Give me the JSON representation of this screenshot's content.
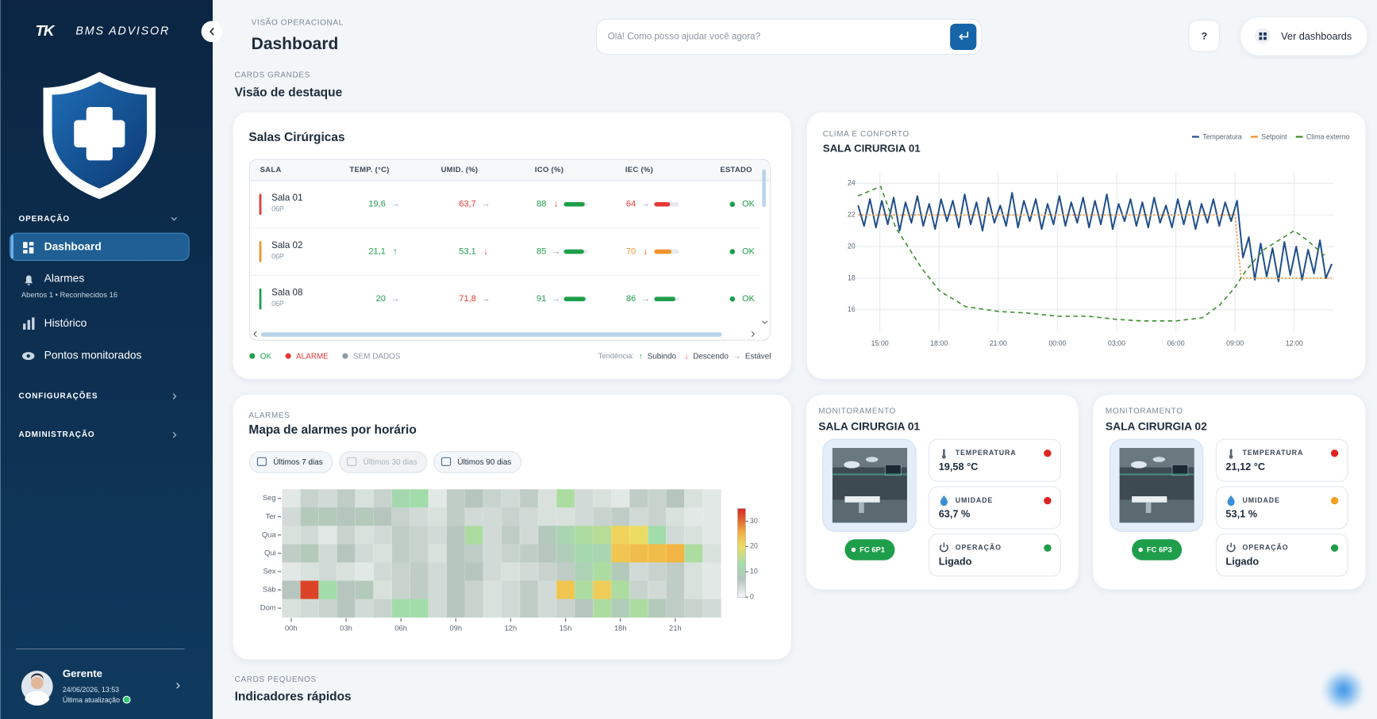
{
  "sidebar": {
    "logo": "TK",
    "brand": "BMS ADVISOR",
    "section_operation": "OPERAÇÃO",
    "nav": [
      {
        "label": "Dashboard"
      },
      {
        "label": "Alarmes",
        "sub": "Abertos 1 • Reconhecidos 16"
      },
      {
        "label": "Histórico"
      },
      {
        "label": "Pontos monitorados"
      }
    ],
    "section_config": "CONFIGURAÇÕES",
    "section_admin": "ADMINISTRAÇÃO",
    "user": {
      "name": "Gerente",
      "date": "24/06/2026, 13:53",
      "updated": "Última atualização"
    }
  },
  "header": {
    "eyebrow": "VISÃO OPERACIONAL",
    "title": "Dashboard",
    "search_placeholder": "Olá! Como posso ajudar você agora?",
    "help": "?",
    "dashboards_button": "Ver dashboards"
  },
  "section_large": {
    "eyebrow": "CARDS GRANDES",
    "title": "Visão de destaque"
  },
  "rooms_table": {
    "title": "Salas Cirúrgicas",
    "columns": [
      "SALA",
      "TEMP. (°C)",
      "UMID. (%)",
      "ICO (%)",
      "IEC (%)",
      "ESTADO"
    ],
    "rows": [
      {
        "name": "Sala 01",
        "code": "06P",
        "color": "#e53935",
        "temp": "19,6",
        "temp_trend": "→",
        "temp_color": "#1e9e4a",
        "umid": "63,7",
        "umid_trend": "→",
        "umid_color": "#e53935",
        "ico": 88,
        "ico_trend": "↓",
        "ico_color": "#1e9e4a",
        "iec": 64,
        "iec_trend": "→",
        "iec_color": "#e53935",
        "status": "OK",
        "status_color": "#1e9e4a"
      },
      {
        "name": "Sala 02",
        "code": "06P",
        "color": "#f0932b",
        "temp": "21,1",
        "temp_trend": "↑",
        "temp_color": "#1e9e4a",
        "umid": "53,1",
        "umid_trend": "↓",
        "umid_color": "#1e9e4a",
        "ico": 85,
        "ico_trend": "→",
        "ico_color": "#1e9e4a",
        "iec": 70,
        "iec_trend": "↓",
        "iec_color": "#f0932b",
        "status": "OK",
        "status_color": "#1e9e4a"
      },
      {
        "name": "Sala 08",
        "code": "06P",
        "color": "#1e9e4a",
        "temp": "20",
        "temp_trend": "→",
        "temp_color": "#1e9e4a",
        "umid": "71,8",
        "umid_trend": "→",
        "umid_color": "#e53935",
        "ico": 91,
        "ico_trend": "→",
        "ico_color": "#1e9e4a",
        "iec": 86,
        "iec_trend": "→",
        "iec_color": "#1e9e4a",
        "status": "OK",
        "status_color": "#1e9e4a"
      }
    ],
    "status_legend": [
      {
        "label": "OK",
        "color": "#1e9e4a"
      },
      {
        "label": "ALARME",
        "color": "#e53935"
      },
      {
        "label": "SEM DADOS",
        "color": "#8d99a6"
      }
    ],
    "trend_title": "Tendência:",
    "trend_legend": [
      {
        "symbol": "↑",
        "label": "Subindo",
        "color": "#1e9e4a"
      },
      {
        "symbol": "↓",
        "label": "Descendo",
        "color": "#e53935"
      },
      {
        "symbol": "→",
        "label": "Estável",
        "color": "#8d99a6"
      }
    ]
  },
  "chart_data": [
    {
      "type": "line",
      "eyebrow": "CLIMA E CONFORTO",
      "title": "SALA CIRURGIA 01",
      "xlim": [
        13.8,
        38
      ],
      "xticks": [
        {
          "value": 15,
          "label": "15:00"
        },
        {
          "value": 18,
          "label": "18:00"
        },
        {
          "value": 21,
          "label": "21:00"
        },
        {
          "value": 24,
          "label": "00:00"
        },
        {
          "value": 27,
          "label": "03:00"
        },
        {
          "value": 30,
          "label": "06:00"
        },
        {
          "value": 33,
          "label": "09:00"
        },
        {
          "value": 36,
          "label": "12:00"
        }
      ],
      "ylim": [
        14.8,
        24.5
      ],
      "yticks": [
        16,
        18,
        20,
        22,
        24
      ],
      "grid": true,
      "legend": "top-right",
      "series": [
        {
          "name": "Temperatura",
          "color": "#1f4e89",
          "dash": "none",
          "x": [
            13.9,
            14.2,
            14.5,
            14.8,
            15.1,
            15.4,
            15.7,
            16,
            16.3,
            16.6,
            16.9,
            17.2,
            17.5,
            17.8,
            18.1,
            18.4,
            18.7,
            19,
            19.3,
            19.6,
            19.9,
            20.2,
            20.5,
            20.8,
            21.1,
            21.4,
            21.7,
            22,
            22.3,
            22.6,
            22.9,
            23.2,
            23.5,
            23.8,
            24.1,
            24.4,
            24.7,
            25,
            25.3,
            25.6,
            25.9,
            26.2,
            26.5,
            26.8,
            27.1,
            27.4,
            27.7,
            28,
            28.3,
            28.6,
            28.9,
            29.2,
            29.5,
            29.8,
            30.1,
            30.4,
            30.7,
            31,
            31.3,
            31.6,
            31.9,
            32.2,
            32.5,
            32.8,
            33.1,
            33.4,
            33.7,
            34,
            34.3,
            34.6,
            34.9,
            35.2,
            35.5,
            35.8,
            36.1,
            36.4,
            36.7,
            37,
            37.3,
            37.6,
            37.9
          ],
          "values": [
            22.6,
            21.3,
            23.0,
            21.2,
            22.9,
            21.4,
            23.1,
            21.0,
            22.8,
            21.5,
            23.2,
            21.3,
            22.7,
            21.1,
            23.0,
            21.6,
            22.9,
            21.2,
            23.3,
            21.4,
            22.8,
            21.0,
            23.1,
            21.5,
            22.6,
            21.3,
            23.4,
            21.2,
            22.9,
            21.6,
            23.0,
            21.1,
            22.7,
            21.4,
            23.2,
            21.3,
            22.8,
            21.5,
            23.1,
            21.2,
            22.9,
            21.4,
            23.3,
            21.1,
            22.7,
            21.6,
            23.0,
            21.3,
            22.8,
            21.2,
            23.1,
            21.5,
            22.6,
            21.2,
            23.0,
            21.4,
            22.9,
            21.1,
            22.7,
            21.5,
            23.0,
            21.3,
            22.8,
            21.6,
            22.9,
            19.3,
            20.6,
            17.9,
            20.2,
            18.1,
            19.9,
            17.8,
            20.3,
            18.2,
            20.0,
            17.9,
            19.8,
            18.3,
            20.4,
            18.0,
            18.9
          ]
        },
        {
          "name": "Setpoint",
          "color": "#f28c28",
          "dash": "2 2",
          "x": [
            13.9,
            33.0,
            33.3,
            37.9
          ],
          "values": [
            22,
            22,
            18,
            18
          ]
        },
        {
          "name": "Clima externo",
          "color": "#3a8a2a",
          "dash": "5 4",
          "x": [
            13.89,
            15.04,
            15.8,
            17.13,
            18.02,
            19.35,
            21,
            22.46,
            24.01,
            25.56,
            26.98,
            28.23,
            30,
            31.33,
            32.22,
            32.98,
            33.56,
            34.45,
            36,
            36.66,
            37.55
          ],
          "values": [
            23.2,
            23.8,
            21.2,
            18.6,
            17.2,
            16.2,
            15.9,
            15.8,
            15.6,
            15.6,
            15.4,
            15.3,
            15.3,
            15.5,
            16.3,
            17.4,
            18.5,
            19.8,
            21.0,
            20.4,
            19.4
          ]
        }
      ]
    },
    {
      "type": "heatmap",
      "eyebrow": "ALARMES",
      "title": "Mapa de alarmes por horário",
      "filters": [
        {
          "label": "Últimos 7 dias",
          "active": true
        },
        {
          "label": "Últimos 30 dias",
          "active": false
        },
        {
          "label": "Últimos 90 dias",
          "active": true
        }
      ],
      "x_categories": [
        "00h",
        null,
        null,
        "03h",
        null,
        null,
        "06h",
        null,
        null,
        "09h",
        null,
        null,
        "12h",
        null,
        null,
        "15h",
        null,
        null,
        "18h",
        null,
        null,
        "21h",
        null,
        null
      ],
      "y_categories": [
        "Seg",
        "Ter",
        "Qua",
        "Qui",
        "Sex",
        "Sáb",
        "Dom"
      ],
      "values": [
        [
          2,
          5,
          4,
          6,
          3,
          5,
          12,
          13,
          2,
          6,
          7,
          5,
          4,
          6,
          3,
          14,
          4,
          3,
          2,
          6,
          5,
          7,
          3,
          2
        ],
        [
          4,
          8,
          8,
          7,
          8,
          7,
          5,
          4,
          3,
          6,
          4,
          4,
          5,
          4,
          3,
          3,
          4,
          5,
          6,
          4,
          5,
          3,
          2,
          2
        ],
        [
          3,
          4,
          2,
          5,
          3,
          4,
          6,
          5,
          4,
          7,
          14,
          4,
          6,
          4,
          8,
          11,
          14,
          15,
          21,
          20,
          13,
          4,
          3,
          2
        ],
        [
          6,
          8,
          4,
          7,
          4,
          3,
          6,
          5,
          3,
          7,
          6,
          4,
          5,
          6,
          7,
          9,
          12,
          11,
          23,
          24,
          24,
          25,
          14,
          3
        ],
        [
          2,
          3,
          4,
          3,
          2,
          4,
          5,
          6,
          4,
          7,
          7,
          4,
          3,
          4,
          5,
          6,
          10,
          14,
          8,
          4,
          5,
          6,
          3,
          2
        ],
        [
          7,
          33,
          13,
          7,
          8,
          3,
          5,
          6,
          4,
          7,
          5,
          3,
          4,
          6,
          4,
          23,
          14,
          22,
          14,
          5,
          4,
          6,
          3,
          2
        ],
        [
          3,
          4,
          5,
          7,
          4,
          5,
          13,
          13,
          4,
          7,
          5,
          3,
          4,
          6,
          4,
          5,
          7,
          14,
          9,
          14,
          8,
          6,
          5,
          4
        ]
      ],
      "zlim": [
        0,
        35
      ],
      "zticks": [
        0,
        10,
        20,
        30
      ],
      "colorscale": [
        [
          0,
          "#f4f5f5"
        ],
        [
          7,
          "#b6c6be"
        ],
        [
          13,
          "#a2dcab"
        ],
        [
          20,
          "#eddc63"
        ],
        [
          25,
          "#f2b544"
        ],
        [
          35,
          "#d7261f"
        ]
      ]
    }
  ],
  "monitoring": [
    {
      "eyebrow": "MONITORAMENTO",
      "title": "SALA CIRURGIA 01",
      "badge": "FC 6P1",
      "stats": [
        {
          "label": "TEMPERATURA",
          "value": "19,58 °C",
          "color": "#e02424"
        },
        {
          "label": "UMIDADE",
          "value": "63,7 %",
          "color": "#e02424"
        },
        {
          "label": "OPERAÇÃO",
          "value": "Ligado",
          "color": "#1e9e4a"
        }
      ]
    },
    {
      "eyebrow": "MONITORAMENTO",
      "title": "SALA CIRURGIA 02",
      "badge": "FC 6P3",
      "stats": [
        {
          "label": "TEMPERATURA",
          "value": "21,12 °C",
          "color": "#e02424"
        },
        {
          "label": "UMIDADE",
          "value": "53,1 %",
          "color": "#f0a020"
        },
        {
          "label": "OPERAÇÃO",
          "value": "Ligado",
          "color": "#1e9e4a"
        }
      ]
    }
  ],
  "section_small": {
    "eyebrow": "CARDS PEQUENOS",
    "title": "Indicadores rápidos"
  }
}
